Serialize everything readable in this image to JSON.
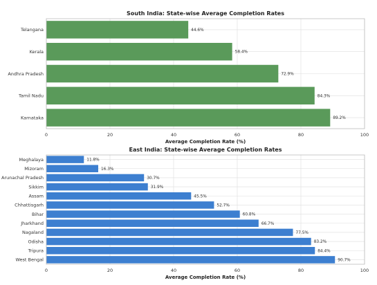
{
  "chart_data": [
    {
      "type": "bar",
      "orientation": "horizontal",
      "title": "South India: State-wise Average Completion Rates",
      "xlabel": "Average Completion Rate (%)",
      "ylabel": "",
      "xlim": [
        0,
        100
      ],
      "xticks": [
        0,
        20,
        40,
        60,
        80,
        100
      ],
      "grid": true,
      "color": "#5a9a5a",
      "categories": [
        "Telangana",
        "Kerala",
        "Andhra Pradesh",
        "Tamil Nadu",
        "Karnataka"
      ],
      "values": [
        44.6,
        58.4,
        72.9,
        84.3,
        89.2
      ],
      "data_labels": [
        "44.6%",
        "58.4%",
        "72.9%",
        "84.3%",
        "89.2%"
      ]
    },
    {
      "type": "bar",
      "orientation": "horizontal",
      "title": "East India: State-wise Average Completion Rates",
      "xlabel": "Average Completion Rate (%)",
      "ylabel": "",
      "xlim": [
        0,
        100
      ],
      "xticks": [
        0,
        20,
        40,
        60,
        80,
        100
      ],
      "grid": true,
      "color": "#3d7fd0",
      "categories": [
        "Meghalaya",
        "Mizoram",
        "Arunachal Pradesh",
        "Sikkim",
        "Assam",
        "Chhattisgarh",
        "Bihar",
        "Jharkhand",
        "Nagaland",
        "Odisha",
        "Tripura",
        "West Bengal"
      ],
      "values": [
        11.8,
        16.3,
        30.7,
        31.9,
        45.5,
        52.7,
        60.8,
        66.7,
        77.5,
        83.2,
        84.4,
        90.7
      ],
      "data_labels": [
        "11.8%",
        "16.3%",
        "30.7%",
        "31.9%",
        "45.5%",
        "52.7%",
        "60.8%",
        "66.7%",
        "77.5%",
        "83.2%",
        "84.4%",
        "90.7%"
      ]
    }
  ]
}
